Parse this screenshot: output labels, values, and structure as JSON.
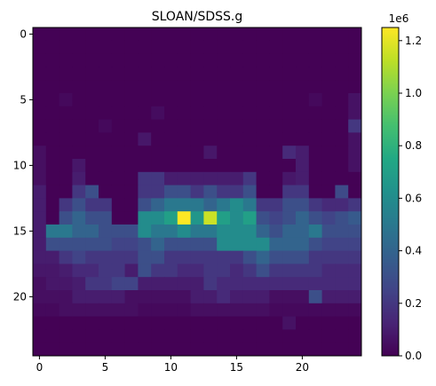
{
  "chart_data": {
    "type": "heatmap",
    "title": "SLOAN/SDSS.g",
    "xlabel": "",
    "ylabel": "",
    "rows": 25,
    "cols": 25,
    "x_ticks": [
      0,
      5,
      10,
      15,
      20
    ],
    "y_ticks": [
      0,
      5,
      10,
      15,
      20
    ],
    "colorbar": {
      "label": "",
      "offset_text": "1e6",
      "min": 0,
      "max": 1250000,
      "ticks": [
        0,
        200000,
        400000,
        600000,
        800000,
        1000000,
        1200000
      ],
      "tick_labels": [
        "0.0",
        "0.2",
        "0.4",
        "0.6",
        "0.8",
        "1.0",
        "1.2"
      ],
      "colormap": "viridis"
    },
    "values_scale": 1000,
    "values": [
      [
        5,
        5,
        5,
        5,
        5,
        5,
        5,
        5,
        5,
        5,
        5,
        5,
        5,
        5,
        5,
        5,
        5,
        5,
        5,
        5,
        5,
        5,
        5,
        5,
        5
      ],
      [
        5,
        5,
        5,
        5,
        5,
        5,
        5,
        5,
        5,
        5,
        5,
        5,
        5,
        5,
        5,
        5,
        5,
        5,
        5,
        5,
        5,
        5,
        5,
        5,
        5
      ],
      [
        5,
        5,
        5,
        5,
        5,
        5,
        5,
        5,
        5,
        5,
        5,
        5,
        5,
        5,
        5,
        5,
        5,
        5,
        5,
        5,
        5,
        5,
        5,
        5,
        5
      ],
      [
        5,
        5,
        5,
        5,
        5,
        5,
        5,
        5,
        5,
        5,
        5,
        5,
        5,
        5,
        5,
        5,
        5,
        5,
        5,
        5,
        5,
        5,
        5,
        5,
        5
      ],
      [
        5,
        5,
        5,
        5,
        5,
        5,
        5,
        5,
        5,
        5,
        5,
        5,
        5,
        5,
        5,
        5,
        5,
        5,
        5,
        5,
        5,
        5,
        5,
        5,
        5
      ],
      [
        5,
        5,
        30,
        5,
        5,
        5,
        5,
        5,
        5,
        5,
        5,
        5,
        5,
        5,
        5,
        5,
        5,
        5,
        5,
        5,
        5,
        30,
        5,
        5,
        60
      ],
      [
        5,
        5,
        5,
        5,
        5,
        5,
        5,
        5,
        5,
        40,
        5,
        5,
        5,
        5,
        5,
        5,
        5,
        5,
        5,
        5,
        5,
        5,
        5,
        5,
        60
      ],
      [
        5,
        5,
        5,
        5,
        5,
        30,
        5,
        5,
        5,
        5,
        5,
        5,
        5,
        5,
        5,
        5,
        5,
        5,
        5,
        5,
        5,
        5,
        5,
        5,
        200
      ],
      [
        5,
        5,
        5,
        5,
        5,
        5,
        5,
        5,
        80,
        5,
        5,
        5,
        5,
        5,
        5,
        5,
        5,
        5,
        5,
        5,
        5,
        5,
        5,
        5,
        60
      ],
      [
        50,
        5,
        5,
        5,
        5,
        5,
        5,
        5,
        5,
        5,
        5,
        5,
        5,
        80,
        5,
        5,
        5,
        5,
        5,
        150,
        100,
        5,
        5,
        5,
        60
      ],
      [
        50,
        5,
        5,
        80,
        5,
        5,
        5,
        5,
        5,
        5,
        5,
        5,
        5,
        5,
        5,
        5,
        5,
        5,
        5,
        5,
        100,
        5,
        5,
        5,
        60
      ],
      [
        50,
        5,
        5,
        100,
        5,
        5,
        5,
        5,
        200,
        200,
        100,
        100,
        100,
        100,
        100,
        100,
        200,
        5,
        5,
        80,
        100,
        5,
        5,
        5,
        5
      ],
      [
        100,
        5,
        5,
        200,
        300,
        5,
        5,
        5,
        200,
        200,
        300,
        300,
        200,
        300,
        200,
        200,
        300,
        5,
        5,
        200,
        200,
        5,
        5,
        280,
        5
      ],
      [
        100,
        5,
        200,
        300,
        200,
        200,
        5,
        5,
        300,
        400,
        500,
        500,
        500,
        400,
        500,
        600,
        500,
        200,
        200,
        300,
        300,
        200,
        150,
        150,
        200
      ],
      [
        100,
        5,
        300,
        400,
        300,
        300,
        5,
        5,
        600,
        600,
        700,
        1250,
        650,
        1150,
        700,
        600,
        700,
        300,
        250,
        300,
        400,
        300,
        250,
        300,
        350
      ],
      [
        100,
        500,
        500,
        400,
        400,
        300,
        300,
        300,
        600,
        500,
        500,
        600,
        500,
        500,
        600,
        600,
        600,
        400,
        300,
        400,
        400,
        500,
        300,
        300,
        300
      ],
      [
        100,
        300,
        300,
        300,
        300,
        300,
        250,
        250,
        300,
        400,
        300,
        300,
        300,
        300,
        600,
        600,
        600,
        600,
        400,
        400,
        400,
        300,
        250,
        250,
        250
      ],
      [
        100,
        100,
        200,
        250,
        200,
        200,
        200,
        200,
        300,
        300,
        200,
        200,
        200,
        200,
        200,
        200,
        300,
        400,
        300,
        300,
        300,
        200,
        200,
        200,
        200
      ],
      [
        80,
        80,
        100,
        150,
        150,
        200,
        200,
        100,
        300,
        200,
        200,
        150,
        150,
        200,
        200,
        150,
        200,
        300,
        200,
        200,
        200,
        200,
        150,
        150,
        150
      ],
      [
        50,
        80,
        80,
        100,
        200,
        200,
        250,
        250,
        100,
        100,
        100,
        100,
        100,
        200,
        150,
        150,
        150,
        150,
        150,
        150,
        150,
        150,
        150,
        150,
        150
      ],
      [
        50,
        50,
        50,
        100,
        100,
        100,
        100,
        50,
        50,
        50,
        50,
        50,
        100,
        100,
        150,
        100,
        100,
        100,
        50,
        50,
        50,
        300,
        100,
        100,
        100
      ],
      [
        30,
        30,
        50,
        50,
        50,
        50,
        50,
        50,
        30,
        30,
        30,
        30,
        50,
        50,
        50,
        50,
        50,
        50,
        30,
        30,
        30,
        30,
        30,
        30,
        30
      ],
      [
        5,
        5,
        5,
        5,
        5,
        5,
        5,
        5,
        5,
        5,
        5,
        5,
        5,
        5,
        5,
        5,
        5,
        5,
        5,
        60,
        5,
        5,
        5,
        5,
        5
      ],
      [
        5,
        5,
        5,
        5,
        5,
        5,
        5,
        5,
        5,
        5,
        5,
        5,
        5,
        5,
        5,
        5,
        5,
        5,
        5,
        5,
        5,
        5,
        5,
        5,
        5
      ],
      [
        5,
        5,
        5,
        5,
        5,
        5,
        5,
        5,
        5,
        5,
        5,
        5,
        5,
        5,
        5,
        5,
        5,
        5,
        5,
        5,
        5,
        5,
        5,
        5,
        5
      ]
    ]
  }
}
